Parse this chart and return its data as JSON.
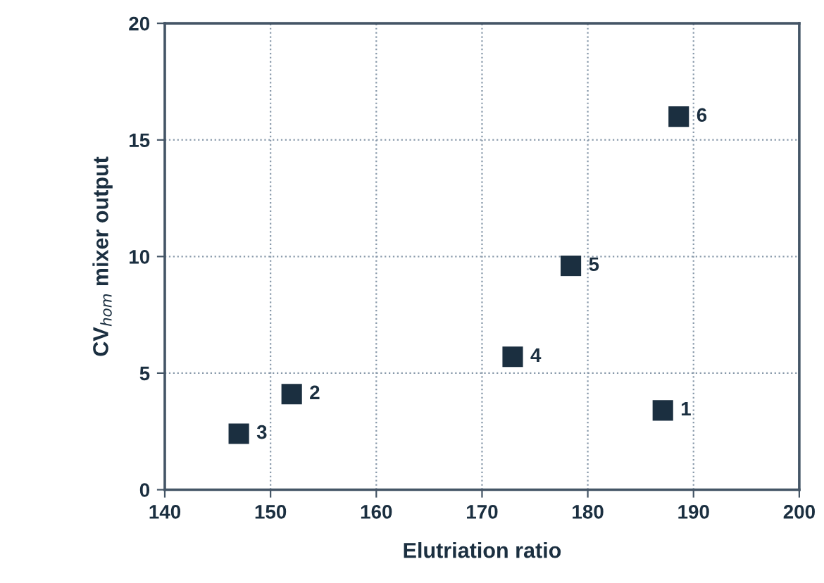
{
  "chart_data": {
    "type": "scatter",
    "xlabel": "Elutriation ratio",
    "ylabel": "CV$_{hom}$ mixer output",
    "x": [
      187.1,
      152.0,
      147.0,
      172.9,
      178.4,
      188.6
    ],
    "values": [
      3.4,
      4.1,
      2.4,
      5.7,
      9.6,
      16.0
    ],
    "color": "#1b2f40",
    "marker": "square",
    "annotations": [
      {
        "text": "1",
        "x": 187.1,
        "y": 3.4
      },
      {
        "text": "2",
        "x": 152.0,
        "y": 4.1
      },
      {
        "text": "3",
        "x": 147.0,
        "y": 2.4
      },
      {
        "text": "4",
        "x": 172.9,
        "y": 5.7
      },
      {
        "text": "5",
        "x": 178.4,
        "y": 9.6
      },
      {
        "text": "6",
        "x": 188.6,
        "y": 16.0
      }
    ],
    "xlim": [
      140,
      200
    ],
    "ylim": [
      0,
      20
    ],
    "xticks": [
      140,
      150,
      160,
      170,
      180,
      190,
      200
    ],
    "yticks": [
      0,
      5,
      10,
      15,
      20
    ],
    "grid": true
  }
}
